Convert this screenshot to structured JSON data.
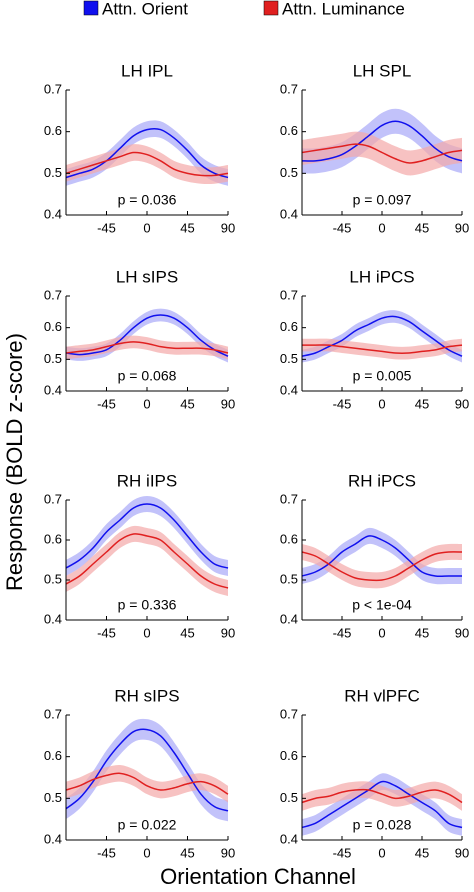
{
  "ylabel": "Response (BOLD z-score)",
  "xlabel": "Orientation Channel",
  "chart_data": [
    {
      "type": "line",
      "title": "LH IPL",
      "annotation": "p = 0.036",
      "xlim": [
        -90,
        90
      ],
      "ylim": [
        0.4,
        0.7
      ],
      "xticks": [
        -45,
        0,
        45,
        90
      ],
      "yticks": [
        0.4,
        0.5,
        0.6,
        0.7
      ],
      "x": [
        -90,
        -75,
        -60,
        -45,
        -30,
        -15,
        0,
        15,
        30,
        45,
        60,
        75,
        90
      ],
      "series": [
        {
          "name": "Attn. Orient",
          "color": "#1010ee",
          "band_color": "#a8a8f8",
          "error": 0.02,
          "values": [
            0.49,
            0.5,
            0.51,
            0.53,
            0.56,
            0.59,
            0.605,
            0.605,
            0.585,
            0.555,
            0.52,
            0.5,
            0.49
          ]
        },
        {
          "name": "Attn. Luminance",
          "color": "#e02020",
          "band_color": "#f4a8a8",
          "error": 0.02,
          "values": [
            0.5,
            0.51,
            0.52,
            0.53,
            0.54,
            0.55,
            0.545,
            0.53,
            0.51,
            0.5,
            0.495,
            0.495,
            0.5
          ]
        }
      ]
    },
    {
      "type": "line",
      "title": "LH SPL",
      "annotation": "p = 0.097",
      "xlim": [
        -90,
        90
      ],
      "ylim": [
        0.4,
        0.7
      ],
      "xticks": [
        -45,
        0,
        45,
        90
      ],
      "yticks": [
        0.4,
        0.5,
        0.6,
        0.7
      ],
      "x": [
        -90,
        -75,
        -60,
        -45,
        -30,
        -15,
        0,
        15,
        30,
        45,
        60,
        75,
        90
      ],
      "series": [
        {
          "name": "Attn. Orient",
          "color": "#1010ee",
          "band_color": "#a8a8f8",
          "error": 0.03,
          "values": [
            0.53,
            0.53,
            0.535,
            0.545,
            0.565,
            0.59,
            0.615,
            0.625,
            0.615,
            0.59,
            0.56,
            0.54,
            0.53
          ]
        },
        {
          "name": "Attn. Luminance",
          "color": "#e02020",
          "band_color": "#f4a8a8",
          "error": 0.03,
          "values": [
            0.55,
            0.555,
            0.56,
            0.565,
            0.57,
            0.565,
            0.55,
            0.535,
            0.525,
            0.53,
            0.54,
            0.55,
            0.555
          ]
        }
      ]
    },
    {
      "type": "line",
      "title": "LH sIPS",
      "annotation": "p = 0.068",
      "xlim": [
        -90,
        90
      ],
      "ylim": [
        0.4,
        0.7
      ],
      "xticks": [
        -45,
        0,
        45,
        90
      ],
      "yticks": [
        0.4,
        0.5,
        0.6,
        0.7
      ],
      "x": [
        -90,
        -75,
        -60,
        -45,
        -30,
        -15,
        0,
        15,
        30,
        45,
        60,
        75,
        90
      ],
      "series": [
        {
          "name": "Attn. Orient",
          "color": "#1010ee",
          "band_color": "#a8a8f8",
          "error": 0.02,
          "values": [
            0.52,
            0.515,
            0.52,
            0.53,
            0.56,
            0.6,
            0.63,
            0.64,
            0.63,
            0.6,
            0.56,
            0.53,
            0.51
          ]
        },
        {
          "name": "Attn. Luminance",
          "color": "#e02020",
          "band_color": "#f4a8a8",
          "error": 0.02,
          "values": [
            0.52,
            0.525,
            0.53,
            0.54,
            0.55,
            0.555,
            0.55,
            0.54,
            0.535,
            0.535,
            0.535,
            0.53,
            0.52
          ]
        }
      ]
    },
    {
      "type": "line",
      "title": "LH iPCS",
      "annotation": "p = 0.005",
      "xlim": [
        -90,
        90
      ],
      "ylim": [
        0.4,
        0.7
      ],
      "xticks": [
        -45,
        0,
        45,
        90
      ],
      "yticks": [
        0.4,
        0.5,
        0.6,
        0.7
      ],
      "x": [
        -90,
        -75,
        -60,
        -45,
        -30,
        -15,
        0,
        15,
        30,
        45,
        60,
        75,
        90
      ],
      "series": [
        {
          "name": "Attn. Orient",
          "color": "#1010ee",
          "band_color": "#a8a8f8",
          "error": 0.02,
          "values": [
            0.51,
            0.52,
            0.54,
            0.56,
            0.59,
            0.61,
            0.63,
            0.635,
            0.62,
            0.59,
            0.56,
            0.53,
            0.51
          ]
        },
        {
          "name": "Attn. Luminance",
          "color": "#e02020",
          "band_color": "#f4a8a8",
          "error": 0.02,
          "values": [
            0.545,
            0.545,
            0.545,
            0.54,
            0.535,
            0.53,
            0.525,
            0.52,
            0.52,
            0.525,
            0.53,
            0.54,
            0.545
          ]
        }
      ]
    },
    {
      "type": "line",
      "title": "RH iIPS",
      "annotation": "p = 0.336",
      "xlim": [
        -90,
        90
      ],
      "ylim": [
        0.4,
        0.7
      ],
      "xticks": [
        -45,
        0,
        45,
        90
      ],
      "yticks": [
        0.4,
        0.5,
        0.6,
        0.7
      ],
      "x": [
        -90,
        -75,
        -60,
        -45,
        -30,
        -15,
        0,
        15,
        30,
        45,
        60,
        75,
        90
      ],
      "series": [
        {
          "name": "Attn. Orient",
          "color": "#1010ee",
          "band_color": "#a8a8f8",
          "error": 0.02,
          "values": [
            0.53,
            0.55,
            0.58,
            0.62,
            0.65,
            0.68,
            0.69,
            0.68,
            0.65,
            0.61,
            0.57,
            0.54,
            0.53
          ]
        },
        {
          "name": "Attn. Luminance",
          "color": "#e02020",
          "band_color": "#f4a8a8",
          "error": 0.02,
          "values": [
            0.49,
            0.51,
            0.54,
            0.57,
            0.6,
            0.615,
            0.61,
            0.6,
            0.57,
            0.54,
            0.51,
            0.49,
            0.48
          ]
        }
      ]
    },
    {
      "type": "line",
      "title": "RH iPCS",
      "annotation": "p < 1e-04",
      "xlim": [
        -90,
        90
      ],
      "ylim": [
        0.4,
        0.7
      ],
      "xticks": [
        -45,
        0,
        45,
        90
      ],
      "yticks": [
        0.4,
        0.5,
        0.6,
        0.7
      ],
      "x": [
        -90,
        -75,
        -60,
        -45,
        -30,
        -15,
        0,
        15,
        30,
        45,
        60,
        75,
        90
      ],
      "series": [
        {
          "name": "Attn. Orient",
          "color": "#1010ee",
          "band_color": "#a8a8f8",
          "error": 0.02,
          "values": [
            0.51,
            0.52,
            0.54,
            0.57,
            0.59,
            0.61,
            0.6,
            0.58,
            0.55,
            0.52,
            0.51,
            0.51,
            0.51
          ]
        },
        {
          "name": "Attn. Luminance",
          "color": "#e02020",
          "band_color": "#f4a8a8",
          "error": 0.02,
          "values": [
            0.57,
            0.56,
            0.54,
            0.52,
            0.505,
            0.5,
            0.5,
            0.51,
            0.53,
            0.55,
            0.565,
            0.57,
            0.57
          ]
        }
      ]
    },
    {
      "type": "line",
      "title": "RH sIPS",
      "annotation": "p = 0.022",
      "xlim": [
        -90,
        90
      ],
      "ylim": [
        0.4,
        0.7
      ],
      "xticks": [
        -45,
        0,
        45,
        90
      ],
      "yticks": [
        0.4,
        0.5,
        0.6,
        0.7
      ],
      "x": [
        -90,
        -75,
        -60,
        -45,
        -30,
        -15,
        0,
        15,
        30,
        45,
        60,
        75,
        90
      ],
      "series": [
        {
          "name": "Attn. Orient",
          "color": "#1010ee",
          "band_color": "#a8a8f8",
          "error": 0.025,
          "values": [
            0.475,
            0.5,
            0.54,
            0.59,
            0.63,
            0.66,
            0.665,
            0.65,
            0.61,
            0.56,
            0.51,
            0.48,
            0.47
          ]
        },
        {
          "name": "Attn. Luminance",
          "color": "#e02020",
          "band_color": "#f4a8a8",
          "error": 0.02,
          "values": [
            0.52,
            0.53,
            0.545,
            0.555,
            0.56,
            0.55,
            0.53,
            0.52,
            0.525,
            0.535,
            0.54,
            0.53,
            0.51
          ]
        }
      ]
    },
    {
      "type": "line",
      "title": "RH vlPFC",
      "annotation": "p = 0.028",
      "xlim": [
        -90,
        90
      ],
      "ylim": [
        0.4,
        0.7
      ],
      "xticks": [
        -45,
        0,
        45,
        90
      ],
      "yticks": [
        0.4,
        0.5,
        0.6,
        0.7
      ],
      "x": [
        -90,
        -75,
        -60,
        -45,
        -30,
        -15,
        0,
        15,
        30,
        45,
        60,
        75,
        90
      ],
      "series": [
        {
          "name": "Attn. Orient",
          "color": "#1010ee",
          "band_color": "#a8a8f8",
          "error": 0.02,
          "values": [
            0.43,
            0.44,
            0.46,
            0.48,
            0.5,
            0.52,
            0.54,
            0.53,
            0.51,
            0.49,
            0.47,
            0.44,
            0.43
          ]
        },
        {
          "name": "Attn. Luminance",
          "color": "#e02020",
          "band_color": "#f4a8a8",
          "error": 0.02,
          "values": [
            0.49,
            0.5,
            0.505,
            0.515,
            0.52,
            0.52,
            0.51,
            0.5,
            0.505,
            0.515,
            0.52,
            0.51,
            0.49
          ]
        }
      ]
    }
  ]
}
